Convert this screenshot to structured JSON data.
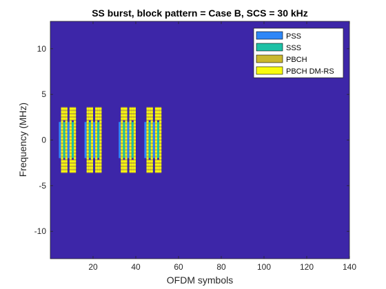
{
  "chart_data": {
    "type": "heatmap",
    "title": "SS burst, block pattern = Case B, SCS = 30 kHz",
    "xlabel": "OFDM symbols",
    "ylabel": "Frequency (MHz)",
    "xlim": [
      0,
      140
    ],
    "ylim": [
      -13,
      13
    ],
    "xticks": [
      20,
      40,
      60,
      80,
      100,
      120,
      140
    ],
    "yticks": [
      10,
      5,
      0,
      -5,
      -10
    ],
    "grid": false,
    "legend_position": "top-right",
    "background_color": "#3d26a8",
    "legend": [
      {
        "name": "PSS",
        "color": "#2e87f7"
      },
      {
        "name": "SSS",
        "color": "#1ec1a6"
      },
      {
        "name": "PBCH",
        "color": "#cbb82e"
      },
      {
        "name": "PBCH DM-RS",
        "color": "#f9fb0e"
      }
    ],
    "ssb_start_symbols": [
      4,
      8,
      16,
      20,
      32,
      36,
      44,
      48
    ],
    "ssb_symbols": {
      "PSS": {
        "symbol_offset": 0,
        "freq_range_mhz": [
          -1.98,
          1.98
        ]
      },
      "PBCH_1": {
        "symbol_offset": 1,
        "freq_range_mhz": [
          -3.6,
          3.6
        ]
      },
      "SSS": {
        "symbol_offset": 2,
        "freq_range_mhz": [
          -1.98,
          1.98
        ]
      },
      "PBCH_2_sides": {
        "symbol_offset": 2,
        "freq_range_mhz": [
          [
            -3.6,
            -2.16
          ],
          [
            2.16,
            3.6
          ]
        ]
      },
      "PBCH_3": {
        "symbol_offset": 3,
        "freq_range_mhz": [
          -3.6,
          3.6
        ]
      }
    },
    "dmrs_spacing_mhz": 0.36
  }
}
